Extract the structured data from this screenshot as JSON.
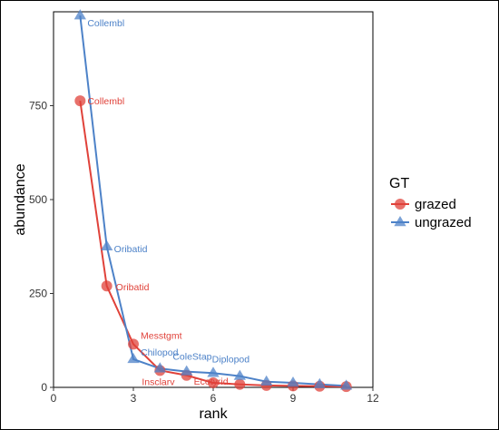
{
  "chart_data": {
    "type": "line",
    "title": "",
    "xlabel": "rank",
    "ylabel": "abundance",
    "xlim": [
      0,
      12
    ],
    "ylim": [
      0,
      1000
    ],
    "xticks": [
      0,
      3,
      6,
      9,
      12
    ],
    "yticks": [
      0,
      250,
      500,
      750
    ],
    "grid": false,
    "legend": {
      "title": "GT",
      "placement": "right"
    },
    "series": [
      {
        "name": "grazed",
        "color": "#e0423a",
        "marker": "circle",
        "x": [
          1,
          2,
          3,
          4,
          5,
          6,
          7,
          8,
          9,
          10,
          11
        ],
        "y": [
          763,
          270,
          115,
          45,
          32,
          12,
          8,
          5,
          4,
          3,
          2
        ],
        "labels": [
          {
            "index": 0,
            "text": "Collembl"
          },
          {
            "index": 1,
            "text": "Oribatid"
          },
          {
            "index": 2,
            "text": "Messtgmt"
          },
          {
            "index": 3,
            "text": "Insclarv"
          },
          {
            "index": 4,
            "text": "Ecotyrid"
          }
        ]
      },
      {
        "name": "ungrazed",
        "color": "#4d82c8",
        "marker": "triangle",
        "x": [
          1,
          2,
          3,
          4,
          5,
          6,
          7,
          8,
          9,
          10,
          11
        ],
        "y": [
          990,
          375,
          75,
          50,
          42,
          38,
          30,
          15,
          12,
          8,
          4
        ],
        "labels": [
          {
            "index": 0,
            "text": "Collembl"
          },
          {
            "index": 1,
            "text": "Oribatid"
          },
          {
            "index": 2,
            "text": "Chilopod"
          },
          {
            "index": 3,
            "text": "ColeStap"
          },
          {
            "index": 4,
            "text": "Diplopod"
          }
        ]
      }
    ]
  }
}
